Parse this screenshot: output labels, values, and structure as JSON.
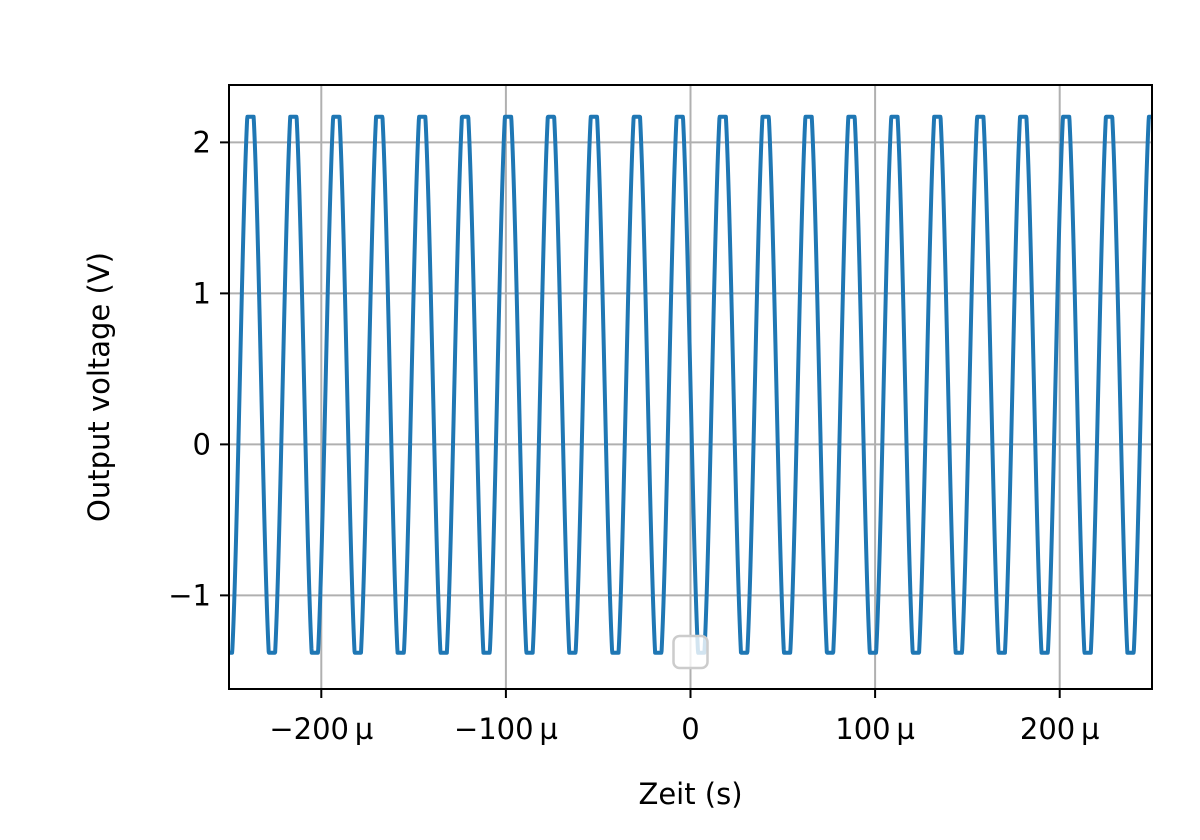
{
  "chart_data": {
    "type": "line",
    "title": "",
    "xlabel": "Zeit (s)",
    "ylabel": "Output voltage (V)",
    "xlim": [
      -0.00025,
      0.00025
    ],
    "ylim": [
      -1.62,
      2.38
    ],
    "grid": true,
    "legend": {
      "placement": "lower center",
      "entries": []
    },
    "x_ticks": [
      {
        "value": -0.0002,
        "label": "−200 µ"
      },
      {
        "value": -0.0001,
        "label": "−100 µ"
      },
      {
        "value": 0,
        "label": "0"
      },
      {
        "value": 0.0001,
        "label": "100 µ"
      },
      {
        "value": 0.0002,
        "label": "200 µ"
      }
    ],
    "y_ticks": [
      {
        "value": -1,
        "label": "−1"
      },
      {
        "value": 0,
        "label": "0"
      },
      {
        "value": 1,
        "label": "1"
      },
      {
        "value": 2,
        "label": "2"
      }
    ],
    "series": [
      {
        "color": "#1f77b4",
        "signal": {
          "waveform": "clipped sine",
          "frequency_hz": 43000,
          "max_v": 2.17,
          "min_v": -1.38,
          "start_v": -1.38
        }
      }
    ]
  },
  "colors": {
    "line": "#1f77b4",
    "grid": "#b0b0b0",
    "axes": "#000000",
    "legend_border": "#cccccc"
  }
}
